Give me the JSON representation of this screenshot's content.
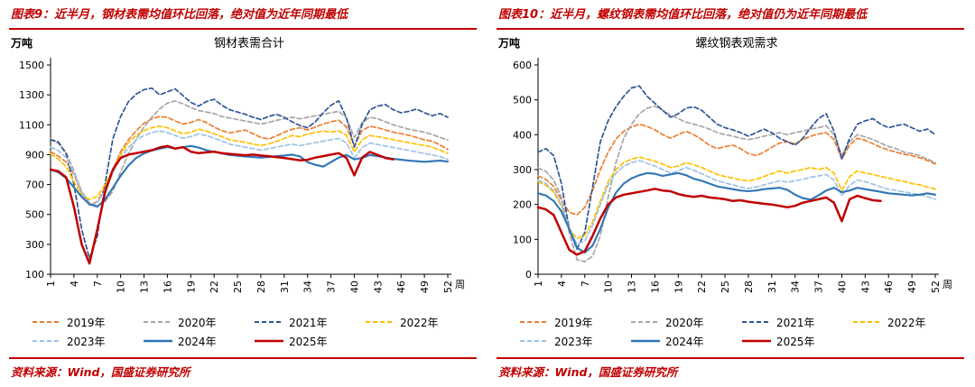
{
  "accent_color": "#C00000",
  "panels": [
    {
      "header": "图表9：近半月，钢材表需均值环比回落，绝对值为近年同期最低",
      "source": "资料来源：Wind，国盛证券研究所"
    },
    {
      "header": "图表10：近半月，螺纹钢表需均值环比回落，绝对值仍为近年同期最低",
      "source": "资料来源：Wind，国盛证券研究所"
    }
  ],
  "chart_data": [
    {
      "type": "line",
      "title": "钢材表需合计",
      "unit_label": "万吨",
      "xlabel": "周",
      "grid": false,
      "legend_position": "bottom",
      "ylim": [
        100,
        1500
      ],
      "yticks": [
        100,
        300,
        500,
        700,
        900,
        1100,
        1300,
        1500
      ],
      "x_range": [
        1,
        52
      ],
      "xticks": [
        1,
        4,
        7,
        10,
        13,
        16,
        19,
        22,
        25,
        28,
        31,
        34,
        37,
        40,
        43,
        46,
        49,
        52
      ],
      "series": [
        {
          "name": "2019年",
          "color": "#ED7D31",
          "style": "dashed",
          "values": [
            920,
            890,
            850,
            770,
            640,
            565,
            585,
            680,
            800,
            920,
            1000,
            1060,
            1110,
            1140,
            1155,
            1150,
            1125,
            1105,
            1115,
            1135,
            1115,
            1085,
            1060,
            1045,
            1055,
            1065,
            1040,
            1015,
            1005,
            1025,
            1050,
            1070,
            1080,
            1065,
            1085,
            1105,
            1120,
            1130,
            1085,
            960,
            1060,
            1090,
            1080,
            1065,
            1050,
            1040,
            1030,
            1015,
            1000,
            990,
            965,
            935
          ]
        },
        {
          "name": "2020年",
          "color": "#A6A6A6",
          "style": "dashed",
          "values": [
            1005,
            975,
            915,
            790,
            655,
            575,
            560,
            585,
            655,
            785,
            905,
            1005,
            1085,
            1150,
            1205,
            1245,
            1260,
            1240,
            1215,
            1195,
            1185,
            1175,
            1155,
            1145,
            1135,
            1125,
            1115,
            1105,
            1115,
            1130,
            1140,
            1150,
            1140,
            1150,
            1160,
            1170,
            1180,
            1190,
            1145,
            1015,
            1115,
            1150,
            1140,
            1120,
            1100,
            1085,
            1070,
            1060,
            1050,
            1035,
            1015,
            1000
          ]
        },
        {
          "name": "2021年",
          "color": "#2F5597",
          "style": "dashed",
          "values": [
            1000,
            985,
            905,
            700,
            400,
            205,
            355,
            705,
            1005,
            1155,
            1255,
            1305,
            1335,
            1345,
            1300,
            1320,
            1340,
            1295,
            1250,
            1225,
            1255,
            1270,
            1230,
            1200,
            1185,
            1170,
            1150,
            1135,
            1155,
            1170,
            1150,
            1120,
            1095,
            1080,
            1120,
            1180,
            1230,
            1260,
            1145,
            950,
            1100,
            1200,
            1225,
            1235,
            1200,
            1180,
            1190,
            1205,
            1180,
            1160,
            1175,
            1150
          ]
        },
        {
          "name": "2022年",
          "color": "#FFC000",
          "style": "dashed",
          "values": [
            905,
            870,
            820,
            720,
            630,
            600,
            620,
            700,
            800,
            900,
            980,
            1030,
            1060,
            1080,
            1090,
            1080,
            1060,
            1040,
            1050,
            1070,
            1058,
            1040,
            1020,
            1000,
            990,
            982,
            970,
            962,
            972,
            988,
            1008,
            1028,
            1020,
            1038,
            1048,
            1058,
            1050,
            1060,
            1028,
            918,
            1000,
            1028,
            1020,
            1010,
            1000,
            990,
            980,
            970,
            962,
            950,
            930,
            908
          ]
        },
        {
          "name": "2023年",
          "color": "#9DC3E6",
          "style": "dashed",
          "values": [
            950,
            928,
            880,
            778,
            648,
            560,
            582,
            660,
            778,
            878,
            948,
            998,
            1028,
            1048,
            1058,
            1048,
            1028,
            1010,
            1020,
            1038,
            1028,
            1010,
            990,
            970,
            960,
            950,
            940,
            930,
            940,
            950,
            960,
            970,
            960,
            970,
            980,
            990,
            1000,
            1008,
            978,
            878,
            948,
            978,
            968,
            958,
            948,
            938,
            928,
            918,
            908,
            898,
            888,
            868
          ]
        },
        {
          "name": "2024年",
          "color": "#2E75B6",
          "style": "solid",
          "values": [
            800,
            782,
            742,
            682,
            618,
            568,
            552,
            600,
            678,
            758,
            828,
            878,
            908,
            928,
            940,
            950,
            942,
            950,
            958,
            948,
            930,
            918,
            908,
            898,
            893,
            888,
            884,
            880,
            884,
            890,
            894,
            900,
            888,
            850,
            832,
            820,
            850,
            880,
            898,
            868,
            878,
            898,
            890,
            880,
            872,
            866,
            860,
            856,
            852,
            856,
            860,
            854
          ]
        },
        {
          "name": "2025年",
          "color": "#C00000",
          "style": "solid",
          "values": [
            800,
            790,
            748,
            550,
            300,
            172,
            400,
            650,
            800,
            878,
            900,
            910,
            920,
            930,
            948,
            958,
            940,
            950,
            920,
            910,
            915,
            920,
            910,
            905,
            900,
            896,
            900,
            894,
            890,
            884,
            878,
            870,
            862,
            866,
            880,
            890,
            900,
            910,
            878,
            762,
            880,
            918,
            898,
            878,
            868
          ]
        }
      ]
    },
    {
      "type": "line",
      "title": "螺纹钢表观需求",
      "unit_label": "万吨",
      "xlabel": "周",
      "grid": false,
      "legend_position": "bottom",
      "ylim": [
        0,
        600
      ],
      "yticks": [
        0,
        100,
        200,
        300,
        400,
        500,
        600
      ],
      "x_range": [
        1,
        52
      ],
      "xticks": [
        1,
        4,
        7,
        10,
        13,
        16,
        19,
        22,
        25,
        28,
        31,
        34,
        37,
        40,
        43,
        46,
        49,
        52
      ],
      "series": [
        {
          "name": "2019年",
          "color": "#ED7D31",
          "style": "dashed",
          "values": [
            282,
            272,
            252,
            212,
            178,
            170,
            192,
            240,
            300,
            350,
            388,
            410,
            422,
            430,
            424,
            414,
            400,
            390,
            400,
            410,
            400,
            386,
            370,
            360,
            366,
            370,
            360,
            346,
            340,
            350,
            364,
            376,
            380,
            374,
            386,
            396,
            402,
            406,
            386,
            330,
            370,
            390,
            384,
            374,
            364,
            356,
            350,
            344,
            340,
            334,
            326,
            316
          ]
        },
        {
          "name": "2020年",
          "color": "#A6A6A6",
          "style": "dashed",
          "values": [
            305,
            295,
            270,
            220,
            120,
            42,
            36,
            52,
            110,
            220,
            320,
            390,
            430,
            460,
            476,
            482,
            470,
            456,
            446,
            436,
            430,
            424,
            416,
            406,
            400,
            396,
            390,
            386,
            390,
            396,
            400,
            406,
            400,
            406,
            410,
            416,
            420,
            426,
            400,
            340,
            380,
            400,
            394,
            386,
            376,
            366,
            360,
            350,
            346,
            340,
            330,
            320
          ]
        },
        {
          "name": "2021年",
          "color": "#2F5597",
          "style": "dashed",
          "values": [
            350,
            360,
            340,
            260,
            130,
            72,
            120,
            250,
            380,
            440,
            480,
            510,
            534,
            540,
            510,
            490,
            470,
            450,
            460,
            476,
            480,
            470,
            450,
            430,
            420,
            414,
            406,
            396,
            406,
            416,
            406,
            390,
            380,
            370,
            390,
            420,
            446,
            460,
            410,
            330,
            390,
            430,
            440,
            446,
            430,
            420,
            426,
            430,
            420,
            410,
            416,
            400
          ]
        },
        {
          "name": "2022年",
          "color": "#FFC000",
          "style": "dashed",
          "values": [
            265,
            255,
            235,
            195,
            130,
            102,
            112,
            150,
            210,
            265,
            300,
            320,
            330,
            336,
            330,
            324,
            316,
            306,
            310,
            320,
            314,
            306,
            296,
            286,
            280,
            276,
            270,
            268,
            272,
            280,
            288,
            296,
            290,
            296,
            300,
            306,
            300,
            306,
            290,
            240,
            280,
            296,
            290,
            286,
            280,
            276,
            270,
            266,
            260,
            256,
            250,
            244
          ]
        },
        {
          "name": "2023年",
          "color": "#9DC3E6",
          "style": "dashed",
          "values": [
            270,
            260,
            240,
            200,
            130,
            86,
            96,
            140,
            200,
            255,
            290,
            310,
            320,
            326,
            318,
            310,
            300,
            290,
            296,
            306,
            298,
            288,
            278,
            268,
            262,
            256,
            250,
            246,
            250,
            256,
            262,
            268,
            264,
            268,
            272,
            278,
            282,
            286,
            270,
            225,
            255,
            270,
            265,
            258,
            250,
            244,
            240,
            236,
            232,
            228,
            222,
            215
          ]
        },
        {
          "name": "2024年",
          "color": "#2E75B6",
          "style": "solid",
          "values": [
            232,
            226,
            210,
            180,
            130,
            76,
            62,
            82,
            130,
            190,
            234,
            260,
            275,
            284,
            290,
            288,
            282,
            286,
            290,
            284,
            274,
            268,
            260,
            252,
            248,
            244,
            240,
            238,
            240,
            244,
            246,
            248,
            242,
            228,
            218,
            214,
            226,
            240,
            248,
            235,
            240,
            248,
            244,
            240,
            236,
            232,
            230,
            228,
            226,
            228,
            232,
            228
          ]
        },
        {
          "name": "2025年",
          "color": "#C00000",
          "style": "solid",
          "values": [
            192,
            186,
            170,
            120,
            70,
            56,
            66,
            110,
            160,
            200,
            220,
            228,
            232,
            236,
            240,
            245,
            240,
            238,
            230,
            225,
            222,
            225,
            220,
            218,
            215,
            210,
            212,
            208,
            205,
            202,
            200,
            196,
            192,
            196,
            205,
            210,
            215,
            220,
            205,
            152,
            215,
            225,
            218,
            212,
            210
          ]
        }
      ]
    }
  ]
}
